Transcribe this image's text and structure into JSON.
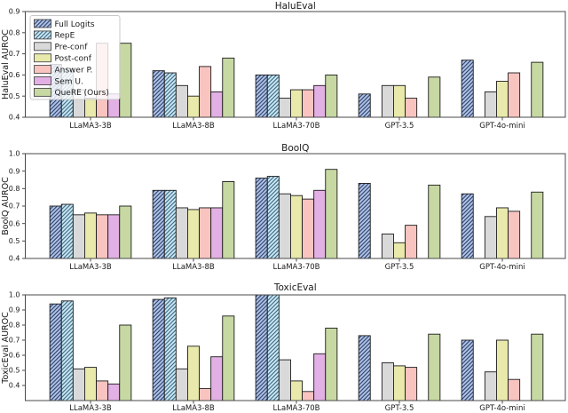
{
  "figure": {
    "background": "#ffffff",
    "axis_color": "#4a4a4a",
    "bar_edge_color": "#1c1c1c",
    "text_color": "#1a1a1a",
    "categories": [
      "LLaMA3-3B",
      "LLaMA3-8B",
      "LLaMA3-70B",
      "GPT-3.5",
      "GPT-4o-mini"
    ],
    "series_meta": [
      {
        "key": "full-logits",
        "label": "Full Logits",
        "color": "#aec4e8",
        "hatch": true,
        "hatch_color": "#23315c"
      },
      {
        "key": "repe",
        "label": "RepE",
        "color": "#cbe7f4",
        "hatch": true,
        "hatch_color": "#2d5d77"
      },
      {
        "key": "pre-conf",
        "label": "Pre-conf",
        "color": "#d9d9d9",
        "hatch": false,
        "hatch_color": null
      },
      {
        "key": "post-conf",
        "label": "Post-conf",
        "color": "#e9e9ab",
        "hatch": false,
        "hatch_color": null
      },
      {
        "key": "answer-p",
        "label": "Answer P.",
        "color": "#f9c4c0",
        "hatch": false,
        "hatch_color": null
      },
      {
        "key": "sem-u",
        "label": "Sem U.",
        "color": "#e2b0e4",
        "hatch": false,
        "hatch_color": null
      },
      {
        "key": "quere",
        "label": "QueRE (Ours)",
        "color": "#c7d8a3",
        "hatch": false,
        "hatch_color": null
      }
    ],
    "legend": {
      "location": "upper left",
      "background": "rgba(255,255,255,0.8)",
      "border_color": "#c8c8c8",
      "entries": [
        "Full Logits",
        "RepE",
        "Pre-conf",
        "Post-conf",
        "Answer P.",
        "Sem U.",
        "QueRE (Ours)"
      ]
    }
  },
  "chart_data": [
    {
      "type": "bar",
      "title": "HaluEval",
      "ylabel": "HaluEval AUROC",
      "xlabel": "",
      "ylim": [
        0.4,
        0.9
      ],
      "yticks": [
        0.4,
        0.5,
        0.6,
        0.7,
        0.8,
        0.9
      ],
      "grid": false,
      "show_legend": true,
      "categories": [
        "LLaMA3-3B",
        "LLaMA3-8B",
        "LLaMA3-70B",
        "GPT-3.5",
        "GPT-4o-mini"
      ],
      "series": [
        {
          "name": "Full Logits",
          "values": [
            0.65,
            0.62,
            0.6,
            0.51,
            0.67
          ]
        },
        {
          "name": "RepE",
          "values": [
            0.63,
            0.61,
            0.6,
            null,
            null
          ]
        },
        {
          "name": "Pre-conf",
          "values": [
            0.53,
            0.55,
            0.49,
            0.55,
            0.52
          ]
        },
        {
          "name": "Post-conf",
          "values": [
            0.49,
            0.5,
            0.53,
            0.55,
            0.57
          ]
        },
        {
          "name": "Answer P.",
          "values": [
            0.75,
            0.64,
            0.53,
            0.49,
            0.61
          ]
        },
        {
          "name": "Sem U.",
          "values": [
            0.51,
            0.52,
            0.55,
            null,
            null
          ]
        },
        {
          "name": "QueRE (Ours)",
          "values": [
            0.75,
            0.68,
            0.6,
            0.59,
            0.66
          ]
        }
      ]
    },
    {
      "type": "bar",
      "title": "BoolQ",
      "ylabel": "BoolQ AUROC",
      "xlabel": "",
      "ylim": [
        0.4,
        1.0
      ],
      "yticks": [
        0.4,
        0.5,
        0.6,
        0.7,
        0.8,
        0.9,
        1.0
      ],
      "grid": false,
      "show_legend": false,
      "categories": [
        "LLaMA3-3B",
        "LLaMA3-8B",
        "LLaMA3-70B",
        "GPT-3.5",
        "GPT-4o-mini"
      ],
      "series": [
        {
          "name": "Full Logits",
          "values": [
            0.7,
            0.79,
            0.86,
            0.83,
            0.77
          ]
        },
        {
          "name": "RepE",
          "values": [
            0.71,
            0.79,
            0.87,
            null,
            null
          ]
        },
        {
          "name": "Pre-conf",
          "values": [
            0.65,
            0.69,
            0.77,
            0.54,
            0.64
          ]
        },
        {
          "name": "Post-conf",
          "values": [
            0.66,
            0.68,
            0.76,
            0.49,
            0.69
          ]
        },
        {
          "name": "Answer P.",
          "values": [
            0.65,
            0.69,
            0.74,
            0.59,
            0.67
          ]
        },
        {
          "name": "Sem U.",
          "values": [
            0.65,
            0.69,
            0.79,
            null,
            null
          ]
        },
        {
          "name": "QueRE (Ours)",
          "values": [
            0.7,
            0.84,
            0.91,
            0.82,
            0.78
          ]
        }
      ]
    },
    {
      "type": "bar",
      "title": "ToxicEval",
      "ylabel": "ToxicEval AUROC",
      "xlabel": "",
      "ylim": [
        0.3,
        1.0
      ],
      "yticks": [
        0.4,
        0.5,
        0.6,
        0.7,
        0.8,
        0.9,
        1.0
      ],
      "grid": false,
      "show_legend": false,
      "categories": [
        "LLaMA3-3B",
        "LLaMA3-8B",
        "LLaMA3-70B",
        "GPT-3.5",
        "GPT-4o-mini"
      ],
      "series": [
        {
          "name": "Full Logits",
          "values": [
            0.94,
            0.97,
            1.0,
            0.73,
            0.7
          ]
        },
        {
          "name": "RepE",
          "values": [
            0.96,
            0.98,
            1.0,
            null,
            null
          ]
        },
        {
          "name": "Pre-conf",
          "values": [
            0.51,
            0.51,
            0.57,
            0.55,
            0.49
          ]
        },
        {
          "name": "Post-conf",
          "values": [
            0.52,
            0.66,
            0.43,
            0.53,
            0.7
          ]
        },
        {
          "name": "Answer P.",
          "values": [
            0.43,
            0.38,
            0.36,
            0.52,
            0.44
          ]
        },
        {
          "name": "Sem U.",
          "values": [
            0.41,
            0.59,
            0.61,
            null,
            null
          ]
        },
        {
          "name": "QueRE (Ours)",
          "values": [
            0.8,
            0.86,
            0.78,
            0.74,
            0.74
          ]
        }
      ]
    }
  ]
}
